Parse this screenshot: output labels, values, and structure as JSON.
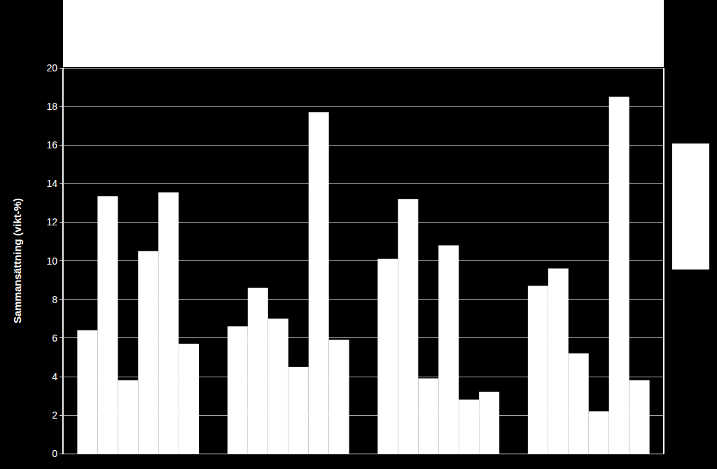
{
  "chart_data": {
    "type": "bar",
    "ylabel": "Sammansättning (vikt-%)",
    "categories": [
      null,
      null,
      null,
      null
    ],
    "series": [
      {
        "color": "#ffffff",
        "values": [
          6.4,
          6.6,
          10.1,
          8.7
        ]
      },
      {
        "color": "#ffffff",
        "values": [
          13.35,
          8.6,
          13.2,
          9.6
        ]
      },
      {
        "color": "#ffffff",
        "values": [
          3.8,
          7.0,
          3.9,
          5.2
        ]
      },
      {
        "color": "#ffffff",
        "values": [
          10.5,
          4.5,
          10.8,
          2.2
        ]
      },
      {
        "color": "#ffffff",
        "values": [
          13.55,
          17.7,
          2.8,
          18.5
        ]
      },
      {
        "color": "#ffffff",
        "values": [
          5.7,
          5.9,
          3.2,
          3.8
        ]
      }
    ],
    "ylim": [
      0,
      20
    ],
    "yticks": [
      0,
      2,
      4,
      6,
      8,
      10,
      12,
      14,
      16,
      18,
      20
    ],
    "grid": true,
    "tick_labels": "y"
  }
}
